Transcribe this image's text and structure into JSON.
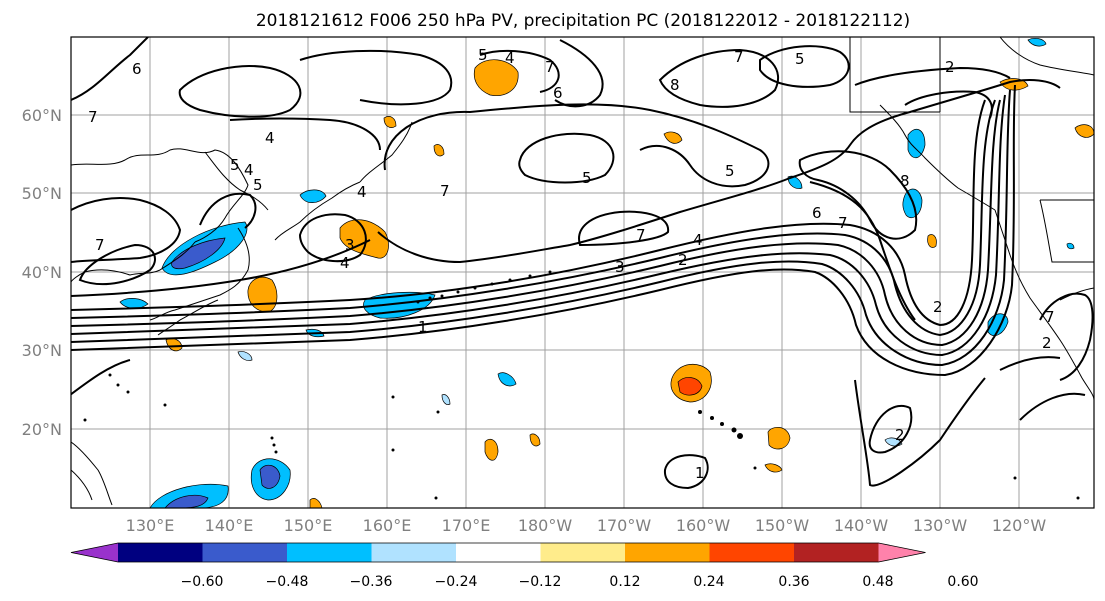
{
  "title": "2018121612 F006 250 hPa PV, precipitation PC (2018122012 - 2018122112)",
  "lat_labels": [
    "60°N",
    "50°N",
    "40°N",
    "30°N",
    "20°N"
  ],
  "lon_labels": [
    "130°E",
    "140°E",
    "150°E",
    "160°E",
    "170°E",
    "180°W",
    "170°W",
    "160°W",
    "150°W",
    "140°W",
    "130°W",
    "120°W"
  ],
  "colorbar": {
    "ticks": [
      "−0.60",
      "−0.48",
      "−0.36",
      "−0.24",
      "−0.12",
      "0.12",
      "0.24",
      "0.36",
      "0.48",
      "0.60"
    ],
    "colors": [
      "#9932cc",
      "#000080",
      "#3a5bcc",
      "#00bfff",
      "#b0e2ff",
      "#ffffff",
      "#ffec8b",
      "#ffa500",
      "#ff4500",
      "#b22222",
      "#ff82ab"
    ]
  },
  "contour_labels": [
    "6",
    "7",
    "4",
    "5",
    "4",
    "5",
    "5",
    "7",
    "6",
    "7",
    "5",
    "2",
    "8",
    "4",
    "5",
    "4",
    "3",
    "4",
    "7",
    "7",
    "5",
    "7",
    "3",
    "2",
    "4",
    "6",
    "7",
    "8",
    "2",
    "1",
    "2",
    "1",
    "7",
    "2"
  ]
}
